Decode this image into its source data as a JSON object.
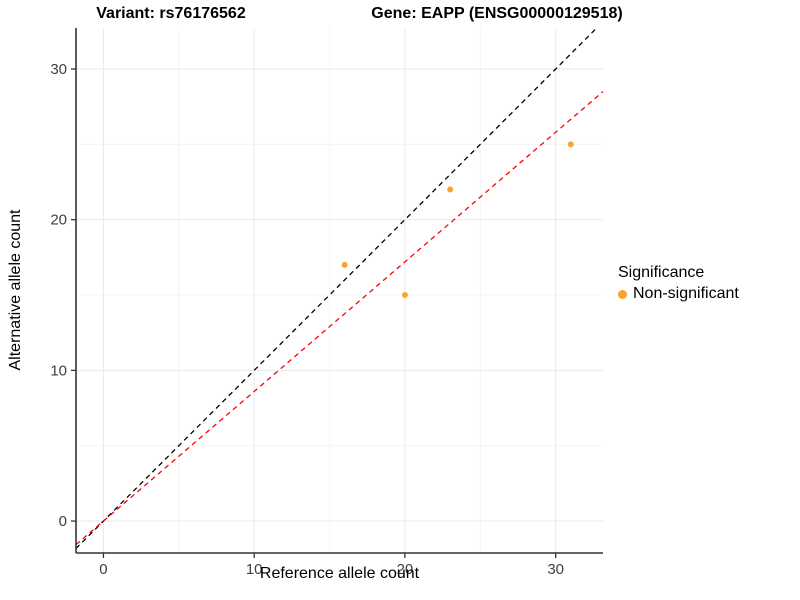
{
  "titles": {
    "variant": "Variant: rs76176562",
    "gene": "Gene: EAPP (ENSG00000129518)"
  },
  "chart_data": {
    "type": "scatter",
    "xlabel": "Reference allele count",
    "ylabel": "Alternative allele count",
    "xlim": [
      -1.82,
      33.14
    ],
    "ylim": [
      -2.12,
      32.72
    ],
    "x_ticks": [
      0,
      10,
      20,
      30
    ],
    "y_ticks": [
      0,
      10,
      20,
      30
    ],
    "x_minor": [
      5,
      15,
      25
    ],
    "y_minor": [
      5,
      15,
      25
    ],
    "grid": true,
    "series": [
      {
        "name": "Non-significant",
        "color": "#F9A42C",
        "points": [
          {
            "x": 16,
            "y": 17
          },
          {
            "x": 20,
            "y": 15
          },
          {
            "x": 23,
            "y": 22
          },
          {
            "x": 31,
            "y": 25
          }
        ]
      }
    ],
    "lines": [
      {
        "name": "identity-line",
        "slope": 1,
        "intercept": 0,
        "color": "#000000",
        "style": "dashed"
      },
      {
        "name": "allelic-ratio-line",
        "slope": 0.86,
        "intercept": 0,
        "color": "#FF0000",
        "style": "dashed"
      }
    ],
    "legend": {
      "title": "Significance",
      "position": "right",
      "items": [
        {
          "label": "Non-significant",
          "color": "#F9A42C",
          "marker": "circle"
        }
      ]
    }
  },
  "colors": {
    "background": "#FFFFFF",
    "grid_major": "#E9E9E9",
    "grid_minor": "#F5F5F5",
    "axis": "#333333",
    "tick_label": "#404040"
  }
}
